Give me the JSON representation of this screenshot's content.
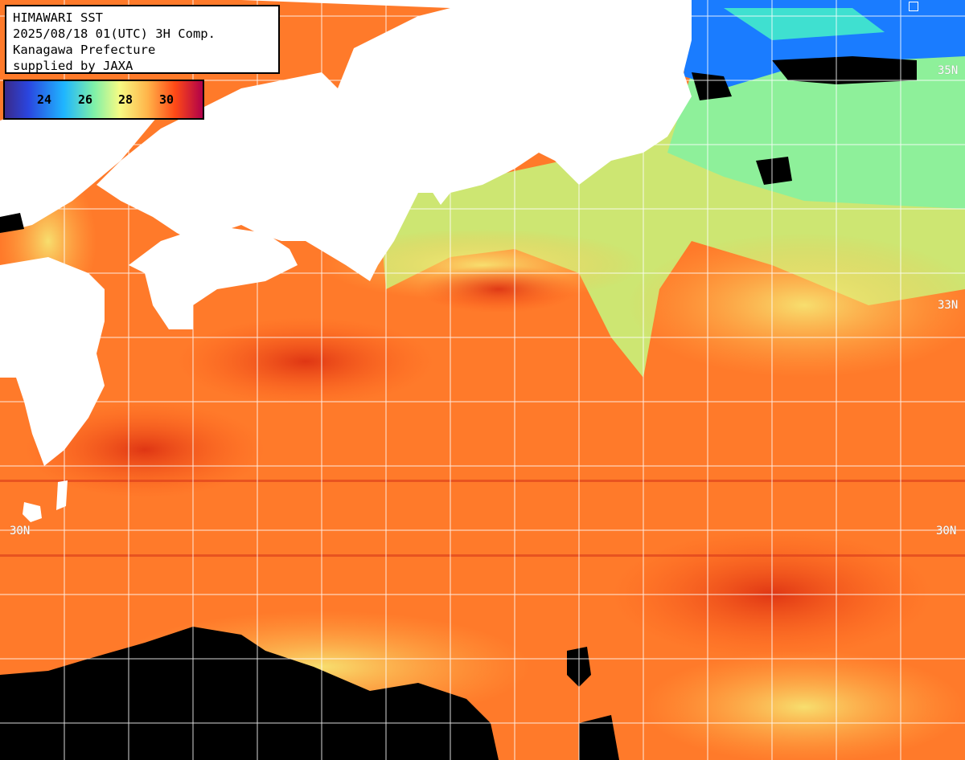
{
  "info_box": {
    "lines": [
      "HIMAWARI SST",
      "2025/08/18 01(UTC) 3H Comp.",
      "Kanagawa Prefecture",
      "supplied by JAXA"
    ]
  },
  "legend": {
    "ticks": [
      "24",
      "26",
      "28",
      "30"
    ],
    "colors": [
      "#3a2a8a",
      "#2a46e0",
      "#1fb6ff",
      "#7ef0a8",
      "#f6fb84",
      "#ffb54a",
      "#ff4a16",
      "#b0004a"
    ]
  },
  "lat_labels": {
    "n35_right": "35N",
    "n33_right": "33N",
    "n30_left": "30N",
    "n30_right": "30N"
  },
  "colors": {
    "land": "#ffffff",
    "cloud_no_data": "#000000",
    "sea_warm": "#ff7a2a",
    "sea_hot": "#e83a12",
    "sea_cool": "#8ef09a",
    "sea_cold": "#1a7cff",
    "grid": "#ffffff"
  }
}
